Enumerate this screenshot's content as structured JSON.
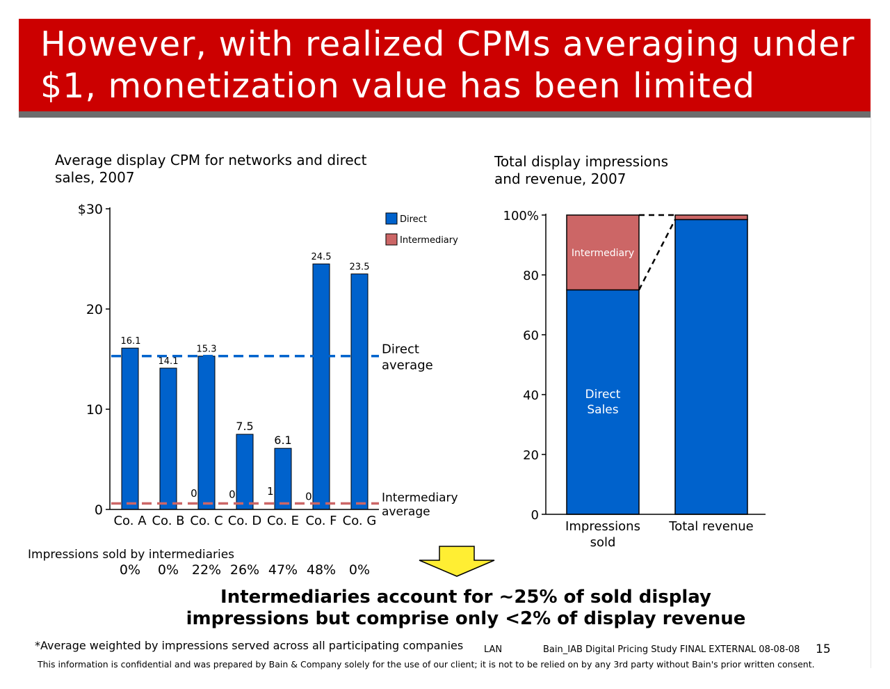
{
  "title": "However, with realized CPMs averaging under $1, monetization value has been limited",
  "left_chart_title": "Average display CPM for networks and direct sales, 2007",
  "right_chart_title": "Total display impressions and revenue, 2007",
  "impressions_label": "Impressions sold by intermediaries",
  "impressions_pct": [
    "0%",
    "0%",
    "22%",
    "26%",
    "47%",
    "48%",
    "0%"
  ],
  "conclusion": "Intermediaries account for ~25% of sold display impressions but comprise only <2% of display revenue",
  "footnote": "*Average weighted by impressions served across all participating companies",
  "footer_code": "LAN",
  "footer_study": "Bain_IAB Digital Pricing Study FINAL EXTERNAL 08-08-08",
  "page_number": "15",
  "confidential": "This information is confidential and was prepared by Bain & Company solely for the use of our client; it is not to be relied on by any 3rd party without Bain's prior written consent.",
  "colors": {
    "direct": "#0062cc",
    "intermediary": "#cc6666",
    "title_bg": "#cc0000",
    "arrow": "#ffee33"
  },
  "chart_data": [
    {
      "type": "bar",
      "categories": [
        "Co. A",
        "Co. B",
        "Co. C",
        "Co. D",
        "Co. E",
        "Co. F",
        "Co. G"
      ],
      "series": [
        {
          "name": "Direct",
          "values": [
            16.1,
            14.1,
            15.3,
            7.5,
            6.1,
            24.5,
            23.5
          ],
          "labels": [
            "16.1",
            "14.1",
            "15.3",
            "7.5",
            "6.1",
            "24.5",
            "23.5"
          ]
        },
        {
          "name": "Intermediary",
          "values": [
            null,
            null,
            0.9,
            0.8,
            1.1,
            0.6,
            null
          ],
          "labels": [
            "",
            "",
            "0.9",
            "0.8",
            "1.1",
            "0.6",
            ""
          ]
        }
      ],
      "reference_lines": [
        {
          "label": "Direct average",
          "value": 15.3,
          "color": "#0062cc"
        },
        {
          "label": "Intermediary average",
          "value": 0.6,
          "color": "#cc6666"
        }
      ],
      "ylim": [
        0,
        30
      ],
      "yticks": [
        "0",
        "10",
        "20",
        "$30"
      ],
      "legend": {
        "placement": "top-right",
        "entries": [
          "Direct",
          "Intermediary"
        ]
      }
    },
    {
      "type": "bar",
      "stacked": true,
      "categories": [
        "Impressions sold",
        "Total revenue"
      ],
      "series": [
        {
          "name": "Direct Sales",
          "values": [
            75,
            98.5
          ]
        },
        {
          "name": "Intermediary",
          "values": [
            25,
            1.5
          ]
        }
      ],
      "ylim": [
        0,
        100
      ],
      "yticks": [
        "0",
        "20",
        "40",
        "60",
        "80",
        "100%"
      ]
    }
  ]
}
